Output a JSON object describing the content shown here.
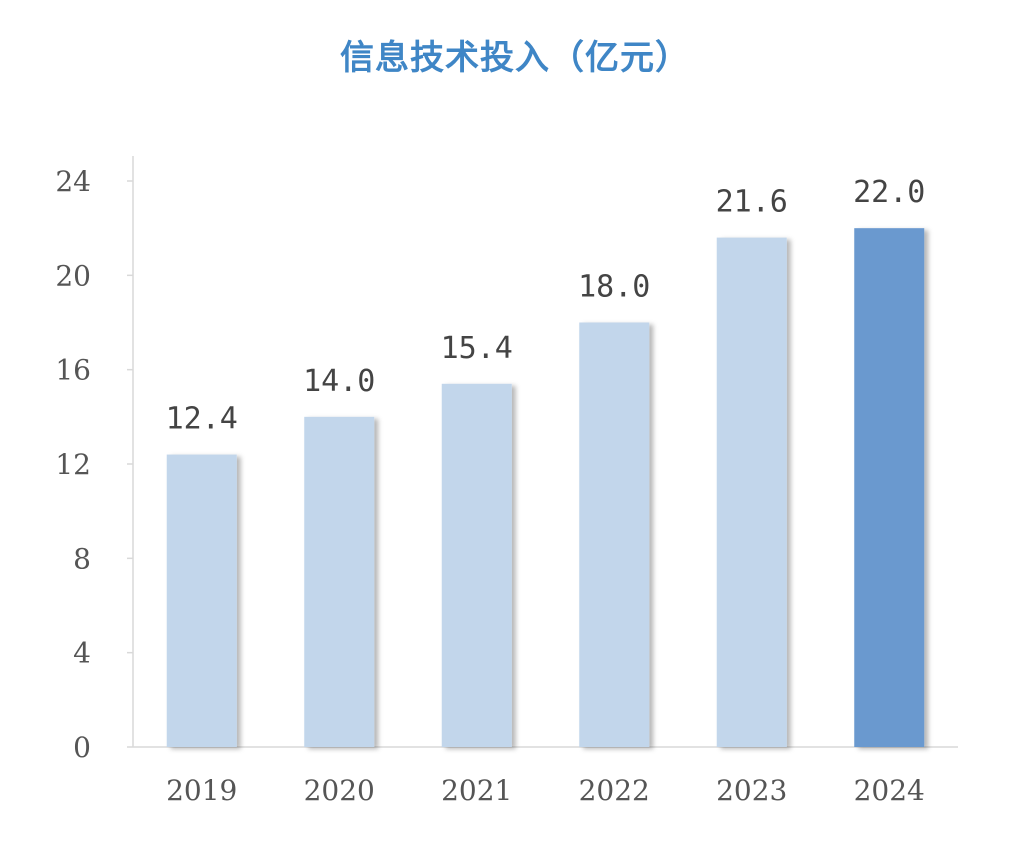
{
  "title": "信息技术投入（亿元）",
  "colors": {
    "bar": "#c2d6eb",
    "bar_highlight": "#6a99cf",
    "title": "#3f86c6"
  },
  "chart_data": {
    "type": "bar",
    "title": "信息技术投入（亿元）",
    "categories": [
      "2019",
      "2020",
      "2021",
      "2022",
      "2023",
      "2024"
    ],
    "values": [
      12.4,
      14.0,
      15.4,
      18.0,
      21.6,
      22.0
    ],
    "value_labels": [
      "12.4",
      "14.0",
      "15.4",
      "18.0",
      "21.6",
      "22.0"
    ],
    "highlight_index": 5,
    "ylim": [
      0,
      24
    ],
    "yticks": [
      "0",
      "4",
      "8",
      "12",
      "16",
      "20",
      "24"
    ],
    "xlabel": "",
    "ylabel": "",
    "grid": false,
    "legend": "none"
  }
}
